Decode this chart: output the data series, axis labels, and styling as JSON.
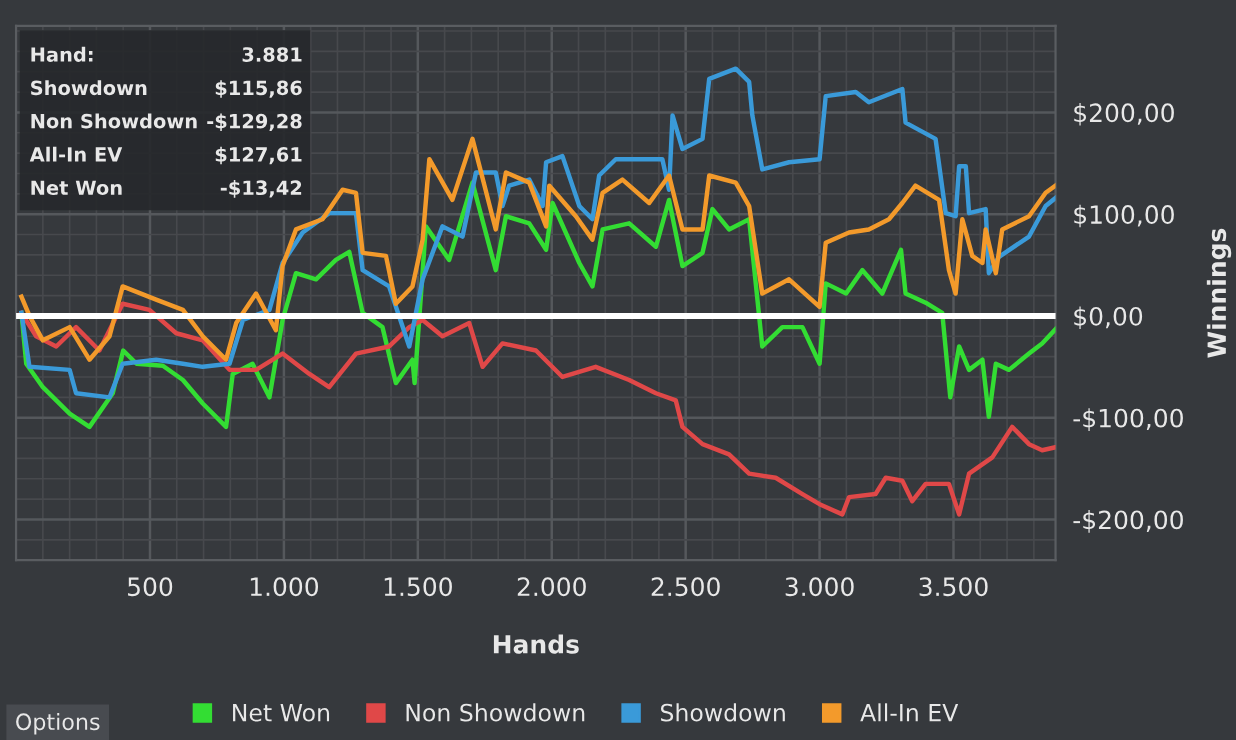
{
  "chart_data": {
    "type": "line",
    "xlabel": "Hands",
    "ylabel": "Winnings",
    "xlim": [
      0,
      3881
    ],
    "ylim": [
      -240,
      285
    ],
    "xticks": [
      {
        "value": 500,
        "label": "500"
      },
      {
        "value": 1000,
        "label": "1.000"
      },
      {
        "value": 1500,
        "label": "1.500"
      },
      {
        "value": 2000,
        "label": "2.000"
      },
      {
        "value": 2500,
        "label": "2.500"
      },
      {
        "value": 3000,
        "label": "3.000"
      },
      {
        "value": 3500,
        "label": "3.500"
      }
    ],
    "yticks": [
      {
        "value": -200,
        "label": "-$200,00"
      },
      {
        "value": -100,
        "label": "-$100,00"
      },
      {
        "value": 0,
        "label": "$0,00"
      },
      {
        "value": 100,
        "label": "$100,00"
      },
      {
        "value": 200,
        "label": "$200,00"
      }
    ],
    "grid": true,
    "legend": "bottom",
    "line_style": "solid",
    "marker": "none",
    "ref_lines": [
      {
        "axis": "y",
        "value": 0,
        "color": "#ffffff"
      }
    ],
    "annotations": [
      "Hand:",
      "3.881",
      "Showdown",
      "$115,86",
      "Non Showdown",
      "-$129,28",
      "All-In EV",
      "$127,61",
      "Net Won",
      "-$13,42",
      "Options"
    ],
    "series": [
      {
        "name": "Net Won",
        "color": "#33dd33",
        "x": [
          20,
          38,
          100,
          200,
          274,
          361,
          400,
          450,
          548,
          623,
          697,
          784,
          809,
          883,
          946,
          995,
          1045,
          1120,
          1194,
          1244,
          1294,
          1368,
          1418,
          1480,
          1488,
          1530,
          1617,
          1704,
          1791,
          1829,
          1916,
          1979,
          2003,
          2103,
          2152,
          2190,
          2289,
          2389,
          2438,
          2488,
          2563,
          2600,
          2662,
          2737,
          2786,
          2861,
          2936,
          3000,
          3023,
          3099,
          3160,
          3234,
          3304,
          3321,
          3396,
          3458,
          3488,
          3521,
          3558,
          3608,
          3632,
          3658,
          3707,
          3782,
          3831,
          3881
        ],
        "values": [
          3,
          -47,
          -70,
          -96,
          -109,
          -76,
          -34,
          -47,
          -49,
          -63,
          -86,
          -109,
          -57,
          -47,
          -80,
          -4,
          42,
          36,
          55,
          63,
          3,
          -11,
          -66,
          -43,
          -66,
          88,
          55,
          131,
          45,
          98,
          91,
          65,
          111,
          52,
          29,
          85,
          91,
          68,
          114,
          49,
          62,
          105,
          85,
          95,
          -30,
          -11,
          -11,
          -47,
          32,
          22,
          45,
          22,
          65,
          22,
          13,
          3,
          -80,
          -30,
          -53,
          -43,
          -99,
          -47,
          -53,
          -37,
          -27,
          -13
        ]
      },
      {
        "name": "Non Showdown",
        "color": "#e04848",
        "x": [
          20,
          75,
          150,
          224,
          311,
          398,
          498,
          598,
          697,
          797,
          896,
          995,
          1095,
          1169,
          1269,
          1393,
          1468,
          1518,
          1592,
          1692,
          1742,
          1816,
          1941,
          2040,
          2164,
          2289,
          2389,
          2463,
          2488,
          2563,
          2662,
          2737,
          2836,
          2936,
          3000,
          3085,
          3110,
          3209,
          3247,
          3309,
          3346,
          3396,
          3483,
          3521,
          3558,
          3645,
          3719,
          3782,
          3831,
          3881
        ],
        "values": [
          3,
          -20,
          -30,
          -11,
          -34,
          12,
          6,
          -17,
          -24,
          -53,
          -53,
          -37,
          -57,
          -70,
          -37,
          -30,
          -11,
          -4,
          -20,
          -7,
          -50,
          -27,
          -34,
          -60,
          -50,
          -63,
          -76,
          -83,
          -109,
          -126,
          -136,
          -155,
          -159,
          -175,
          -185,
          -195,
          -178,
          -175,
          -159,
          -162,
          -182,
          -165,
          -165,
          -195,
          -155,
          -139,
          -109,
          -126,
          -132,
          -129
        ]
      },
      {
        "name": "Showdown",
        "color": "#3a9ad9",
        "x": [
          20,
          50,
          200,
          224,
          349,
          398,
          523,
          623,
          697,
          797,
          847,
          946,
          995,
          1070,
          1169,
          1269,
          1294,
          1393,
          1468,
          1518,
          1592,
          1667,
          1717,
          1791,
          1816,
          1841,
          1916,
          1966,
          1979,
          2040,
          2103,
          2152,
          2177,
          2239,
          2413,
          2438,
          2451,
          2488,
          2563,
          2588,
          2687,
          2737,
          2749,
          2786,
          2886,
          3000,
          3023,
          3135,
          3184,
          3309,
          3321,
          3433,
          3471,
          3508,
          3521,
          3546,
          3558,
          3620,
          3632,
          3670,
          3782,
          3844,
          3881
        ],
        "values": [
          3,
          -50,
          -53,
          -76,
          -80,
          -47,
          -43,
          -47,
          -50,
          -47,
          -4,
          6,
          52,
          82,
          101,
          101,
          45,
          29,
          -30,
          36,
          88,
          78,
          141,
          141,
          108,
          128,
          134,
          108,
          151,
          157,
          108,
          95,
          138,
          154,
          154,
          124,
          197,
          164,
          174,
          233,
          243,
          230,
          197,
          144,
          151,
          154,
          216,
          220,
          210,
          223,
          190,
          174,
          101,
          98,
          147,
          147,
          101,
          105,
          42,
          58,
          78,
          108,
          116
        ]
      },
      {
        "name": "All-In EV",
        "color": "#f39a2b",
        "x": [
          20,
          50,
          100,
          200,
          274,
          349,
          398,
          523,
          623,
          697,
          784,
          822,
          896,
          970,
          995,
          1045,
          1144,
          1219,
          1269,
          1294,
          1381,
          1418,
          1480,
          1518,
          1543,
          1629,
          1704,
          1791,
          1829,
          1916,
          1979,
          1991,
          2090,
          2152,
          2190,
          2264,
          2364,
          2438,
          2488,
          2563,
          2588,
          2687,
          2737,
          2786,
          2886,
          3000,
          3023,
          3110,
          3184,
          3259,
          3309,
          3358,
          3446,
          3483,
          3508,
          3533,
          3570,
          3608,
          3620,
          3658,
          3682,
          3782,
          3844,
          3881
        ],
        "values": [
          19,
          0,
          -24,
          -11,
          -43,
          -20,
          29,
          16,
          6,
          -20,
          -43,
          -7,
          22,
          -14,
          49,
          85,
          95,
          124,
          121,
          62,
          59,
          12,
          29,
          75,
          154,
          114,
          174,
          85,
          141,
          131,
          88,
          128,
          98,
          75,
          121,
          134,
          111,
          138,
          85,
          85,
          138,
          131,
          108,
          22,
          36,
          9,
          72,
          82,
          85,
          95,
          111,
          128,
          114,
          45,
          22,
          95,
          59,
          52,
          85,
          42,
          85,
          98,
          121,
          128
        ]
      }
    ]
  }
}
